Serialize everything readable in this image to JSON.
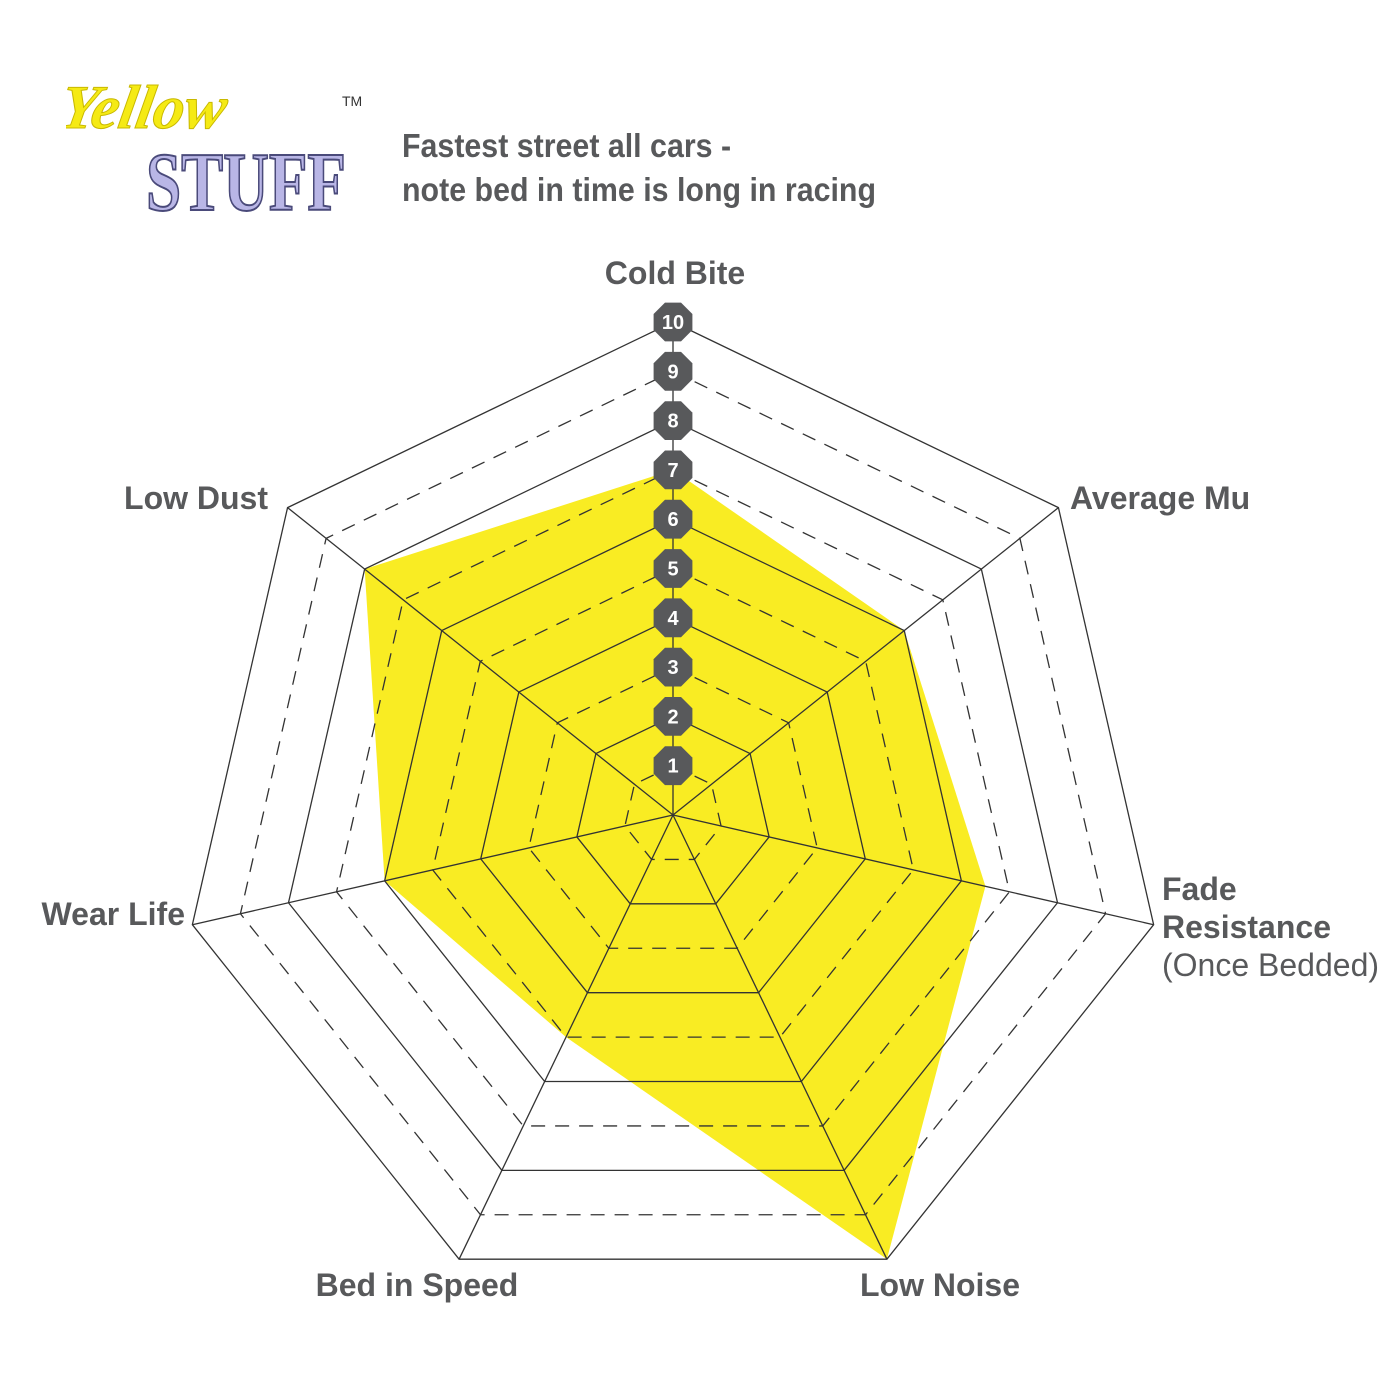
{
  "logo": {
    "word1": "Yellow",
    "word2": "STUFF",
    "trademark": "TM",
    "colors": {
      "word1": "#f5ea14",
      "word2": "#b9b6e6"
    }
  },
  "title": {
    "line1": "Fastest street all cars -",
    "line2": "note bed in time is long in racing"
  },
  "chart_data": {
    "type": "radar",
    "axes": [
      {
        "label": [
          "Cold Bite"
        ],
        "value": 7
      },
      {
        "label": [
          "Average Mu"
        ],
        "value": 6
      },
      {
        "label": [
          "Fade",
          "Resistance",
          "(Once Bedded)"
        ],
        "value": 6.5
      },
      {
        "label": [
          "Low Noise"
        ],
        "value": 10
      },
      {
        "label": [
          "Bed in Speed"
        ],
        "value": 5
      },
      {
        "label": [
          "Wear Life"
        ],
        "value": 6
      },
      {
        "label": [
          "Low Dust"
        ],
        "value": 8
      }
    ],
    "range": [
      0,
      10
    ],
    "scale_labels": [
      "1",
      "2",
      "3",
      "4",
      "5",
      "6",
      "7",
      "8",
      "9",
      "10"
    ],
    "grid": "solid rings on even levels, dashed rings on odd levels",
    "colors": {
      "fill": "#f9ec23",
      "grid": "#333333",
      "badge": "#58595b",
      "text": "#58595b"
    }
  }
}
